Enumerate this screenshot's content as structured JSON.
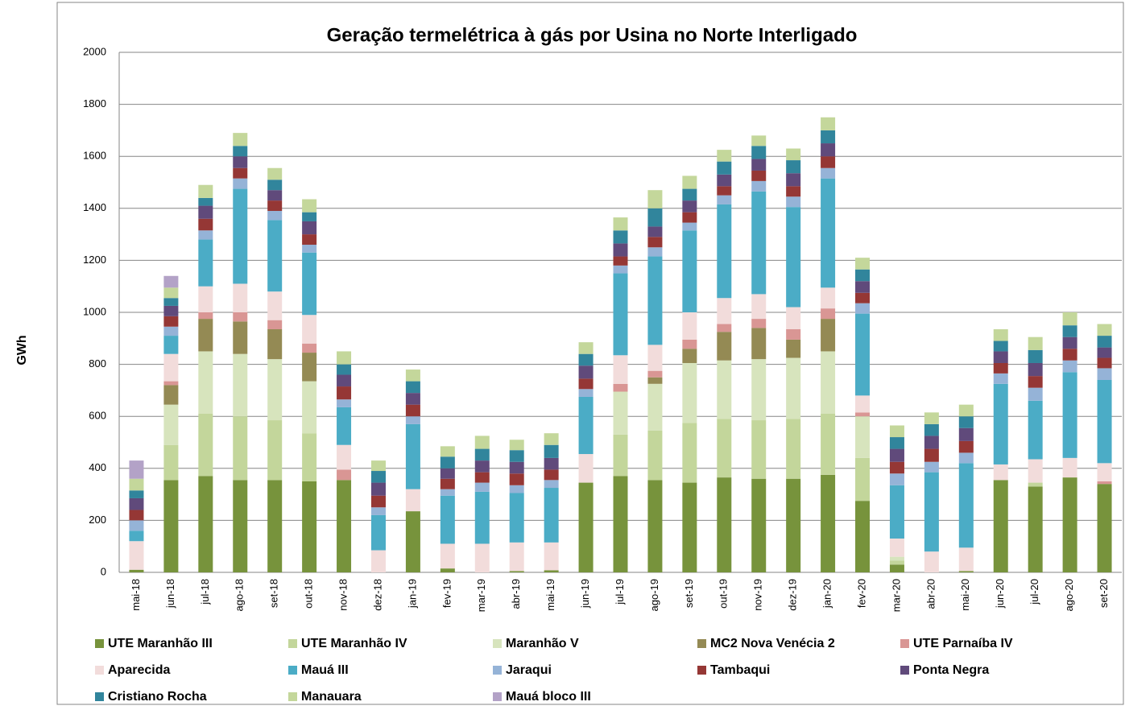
{
  "chart_data": {
    "type": "stacked_bar",
    "title": "Geração termelétrica à gás por Usina no Norte Interligado",
    "y_label": "GWh",
    "categories": [
      "mai-18",
      "jun-18",
      "jul-18",
      "ago-18",
      "set-18",
      "out-18",
      "nov-18",
      "dez-18",
      "jan-19",
      "fev-19",
      "mar-19",
      "abr-19",
      "mai-19",
      "jun-19",
      "jul-19",
      "ago-19",
      "set-19",
      "out-19",
      "nov-19",
      "dez-19",
      "jan-20",
      "fev-20",
      "mar-20",
      "abr-20",
      "mai-20",
      "jun-20",
      "jul-20",
      "ago-20",
      "set-20"
    ],
    "ylim": [
      0,
      2000
    ],
    "yticks": [
      0,
      200,
      400,
      600,
      800,
      1000,
      1200,
      1400,
      1600,
      1800,
      2000
    ],
    "grid": true,
    "series": [
      {
        "name": "UTE Maranhão III",
        "color": "#77933c",
        "values": [
          10,
          355,
          370,
          355,
          355,
          350,
          355,
          0,
          235,
          15,
          0,
          5,
          8,
          345,
          370,
          355,
          345,
          365,
          360,
          360,
          375,
          275,
          30,
          0,
          5,
          355,
          330,
          365,
          340
        ]
      },
      {
        "name": "UTE Maranhão IV",
        "color": "#c3d69b",
        "values": [
          0,
          135,
          240,
          245,
          230,
          185,
          0,
          0,
          0,
          0,
          0,
          0,
          0,
          0,
          160,
          190,
          230,
          225,
          225,
          230,
          235,
          165,
          15,
          0,
          0,
          0,
          15,
          0,
          0
        ]
      },
      {
        "name": "Maranhão V",
        "color": "#d7e4bd",
        "values": [
          0,
          155,
          240,
          240,
          235,
          200,
          0,
          0,
          0,
          0,
          0,
          0,
          0,
          0,
          165,
          180,
          230,
          225,
          235,
          235,
          240,
          160,
          15,
          0,
          0,
          0,
          0,
          0,
          0
        ]
      },
      {
        "name": "MC2 Nova Venécia 2",
        "color": "#948a54",
        "values": [
          0,
          75,
          125,
          125,
          115,
          110,
          0,
          0,
          0,
          0,
          0,
          0,
          0,
          0,
          0,
          25,
          55,
          110,
          120,
          70,
          125,
          0,
          0,
          0,
          0,
          0,
          0,
          0,
          0
        ]
      },
      {
        "name": "UTE Parnaíba IV",
        "color": "#d99694",
        "values": [
          0,
          15,
          25,
          35,
          35,
          35,
          40,
          0,
          0,
          0,
          0,
          0,
          0,
          0,
          30,
          25,
          35,
          30,
          35,
          40,
          40,
          15,
          0,
          0,
          0,
          0,
          0,
          0,
          10
        ]
      },
      {
        "name": "Aparecida",
        "color": "#f2dcdb",
        "values": [
          110,
          105,
          100,
          110,
          110,
          110,
          95,
          85,
          85,
          95,
          110,
          110,
          107,
          110,
          110,
          100,
          105,
          100,
          95,
          85,
          80,
          65,
          70,
          80,
          90,
          60,
          90,
          75,
          70
        ]
      },
      {
        "name": "Mauá III",
        "color": "#4bacc6",
        "values": [
          40,
          70,
          180,
          365,
          275,
          240,
          145,
          135,
          250,
          185,
          200,
          190,
          210,
          220,
          315,
          340,
          315,
          360,
          395,
          385,
          420,
          315,
          205,
          305,
          325,
          310,
          225,
          330,
          320
        ]
      },
      {
        "name": "Jaraqui",
        "color": "#95b3d7",
        "values": [
          40,
          35,
          35,
          40,
          35,
          30,
          30,
          30,
          30,
          25,
          35,
          30,
          30,
          30,
          30,
          35,
          30,
          35,
          40,
          40,
          40,
          40,
          45,
          40,
          40,
          40,
          50,
          45,
          45
        ]
      },
      {
        "name": "Tambaqui",
        "color": "#953735",
        "values": [
          40,
          40,
          45,
          40,
          40,
          40,
          50,
          45,
          45,
          40,
          40,
          45,
          40,
          40,
          35,
          40,
          40,
          35,
          40,
          40,
          45,
          40,
          45,
          50,
          45,
          40,
          45,
          45,
          40
        ]
      },
      {
        "name": "Ponta Negra",
        "color": "#604a7b",
        "values": [
          45,
          40,
          50,
          45,
          40,
          50,
          45,
          50,
          45,
          40,
          45,
          45,
          45,
          50,
          50,
          40,
          45,
          45,
          45,
          50,
          50,
          45,
          50,
          50,
          50,
          45,
          50,
          45,
          40
        ]
      },
      {
        "name": "Cristiano Rocha",
        "color": "#31859c",
        "values": [
          30,
          30,
          30,
          40,
          40,
          35,
          40,
          45,
          45,
          45,
          45,
          45,
          50,
          45,
          50,
          70,
          45,
          50,
          50,
          50,
          50,
          45,
          45,
          45,
          45,
          40,
          50,
          45,
          45
        ]
      },
      {
        "name": "Manauara",
        "color": "#c4d79b",
        "values": [
          45,
          40,
          50,
          50,
          45,
          50,
          50,
          40,
          45,
          40,
          50,
          40,
          45,
          45,
          50,
          70,
          50,
          45,
          40,
          45,
          50,
          45,
          45,
          45,
          45,
          45,
          50,
          50,
          45
        ]
      },
      {
        "name": "Mauá bloco III",
        "color": "#b3a2c7",
        "values": [
          70,
          45,
          0,
          0,
          0,
          0,
          0,
          0,
          0,
          0,
          0,
          0,
          0,
          0,
          0,
          0,
          0,
          0,
          0,
          0,
          0,
          0,
          0,
          0,
          0,
          0,
          0,
          0,
          0
        ]
      }
    ]
  }
}
